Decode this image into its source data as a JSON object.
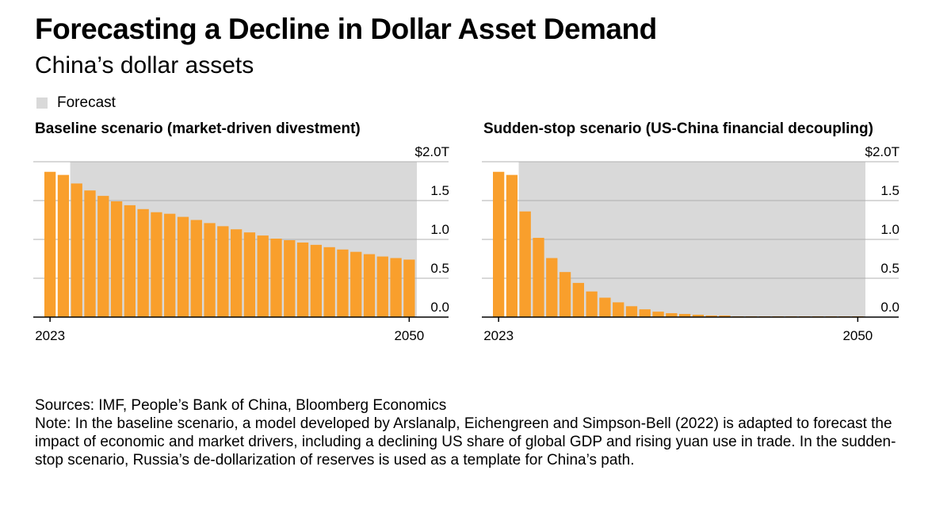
{
  "title": "Forecasting a Decline in Dollar Asset Demand",
  "subtitle": "China’s dollar assets",
  "legend": {
    "label": "Forecast",
    "color": "#d9d9d9"
  },
  "colors": {
    "bar": "#f99f2c",
    "grid": "#b0b0b0",
    "forecast_shading": "#d9d9d9",
    "axis": "#000000"
  },
  "chart_data": [
    {
      "type": "bar",
      "title": "Baseline scenario (market-driven divestment)",
      "x": [
        2023,
        2024,
        2025,
        2026,
        2027,
        2028,
        2029,
        2030,
        2031,
        2032,
        2033,
        2034,
        2035,
        2036,
        2037,
        2038,
        2039,
        2040,
        2041,
        2042,
        2043,
        2044,
        2045,
        2046,
        2047,
        2048,
        2049,
        2050
      ],
      "values": [
        1.87,
        1.83,
        1.72,
        1.63,
        1.56,
        1.49,
        1.44,
        1.39,
        1.35,
        1.33,
        1.29,
        1.25,
        1.21,
        1.17,
        1.13,
        1.09,
        1.05,
        1.01,
        0.99,
        0.96,
        0.93,
        0.9,
        0.87,
        0.84,
        0.81,
        0.78,
        0.76,
        0.74
      ],
      "forecast_start": 2025,
      "ylim": [
        0,
        2.0
      ],
      "yticks": [
        0.0,
        0.5,
        1.0,
        1.5,
        2.0
      ],
      "ytick_labels": [
        "0.0",
        "0.5",
        "1.0",
        "1.5",
        "$2.0T"
      ],
      "xtick_labels": [
        "2023",
        "2050"
      ],
      "grid": true
    },
    {
      "type": "bar",
      "title": "Sudden-stop scenario (US-China financial decoupling)",
      "x": [
        2023,
        2024,
        2025,
        2026,
        2027,
        2028,
        2029,
        2030,
        2031,
        2032,
        2033,
        2034,
        2035,
        2036,
        2037,
        2038,
        2039,
        2040,
        2041,
        2042,
        2043,
        2044,
        2045,
        2046,
        2047,
        2048,
        2049,
        2050
      ],
      "values": [
        1.87,
        1.83,
        1.36,
        1.02,
        0.76,
        0.58,
        0.44,
        0.33,
        0.25,
        0.19,
        0.14,
        0.1,
        0.07,
        0.05,
        0.04,
        0.03,
        0.02,
        0.02,
        0.01,
        0.01,
        0.01,
        0.01,
        0.01,
        0.01,
        0.01,
        0.01,
        0.01,
        0.01
      ],
      "forecast_start": 2025,
      "ylim": [
        0,
        2.0
      ],
      "yticks": [
        0.0,
        0.5,
        1.0,
        1.5,
        2.0
      ],
      "ytick_labels": [
        "0.0",
        "0.5",
        "1.0",
        "1.5",
        "$2.0T"
      ],
      "xtick_labels": [
        "2023",
        "2050"
      ],
      "grid": true
    }
  ],
  "footer": {
    "sources": "Sources: IMF, People’s Bank of China, Bloomberg Economics",
    "note": "Note: In the baseline scenario, a model developed by Arslanalp, Eichengreen and Simpson-Bell (2022) is adapted to forecast the impact of economic and market drivers, including a declining US share of global GDP and rising yuan use in trade. In the sudden-stop scenario, Russia’s de-dollarization of reserves is used as a template for China’s path."
  }
}
